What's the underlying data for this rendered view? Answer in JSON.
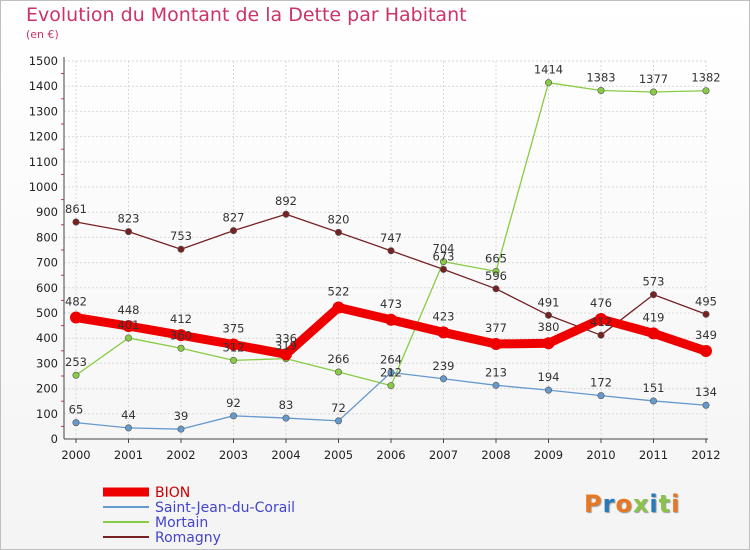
{
  "chart_data": {
    "type": "line",
    "title": "Evolution du Montant de la Dette par Habitant",
    "subtitle": "(en €)",
    "categories": [
      "2000",
      "2001",
      "2002",
      "2003",
      "2004",
      "2005",
      "2006",
      "2007",
      "2008",
      "2009",
      "2010",
      "2011",
      "2012"
    ],
    "ylim": [
      0,
      1500
    ],
    "yticks": [
      0,
      100,
      200,
      300,
      400,
      500,
      600,
      700,
      800,
      900,
      1000,
      1100,
      1200,
      1300,
      1400,
      1500
    ],
    "grid": true,
    "legend_position": "bottom-left",
    "series": [
      {
        "name": "BION",
        "color": "#ee0000",
        "emphasis": true,
        "values": [
          482,
          448,
          412,
          375,
          336,
          522,
          473,
          423,
          377,
          380,
          476,
          419,
          349
        ]
      },
      {
        "name": "Saint-Jean-du-Corail",
        "color": "#6699cc",
        "values": [
          65,
          44,
          39,
          92,
          83,
          72,
          264,
          239,
          213,
          194,
          172,
          151,
          134
        ]
      },
      {
        "name": "Mortain",
        "color": "#88cc44",
        "values": [
          253,
          401,
          360,
          312,
          319,
          266,
          212,
          704,
          665,
          1414,
          1383,
          1377,
          1382
        ]
      },
      {
        "name": "Romagny",
        "color": "#772222",
        "values": [
          861,
          823,
          753,
          827,
          892,
          820,
          747,
          673,
          596,
          491,
          412,
          573,
          495
        ]
      }
    ]
  },
  "logo": {
    "text": "Proxiti",
    "colors": [
      "#e87722",
      "#2a7ab8",
      "#e87722",
      "#8bc34a",
      "#2a7ab8",
      "#8bc34a",
      "#e87722"
    ]
  }
}
